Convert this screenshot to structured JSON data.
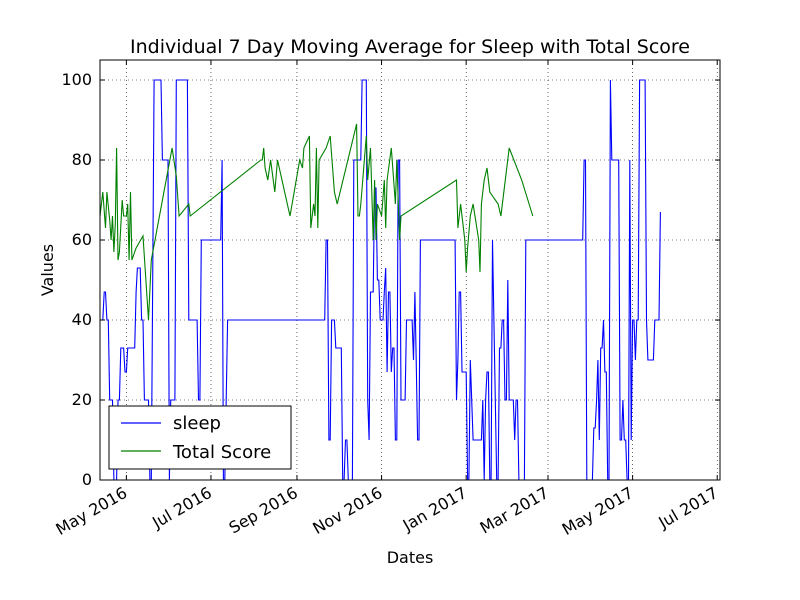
{
  "chart_data": {
    "type": "line",
    "title": "Individual 7 Day Moving Average for Sleep with Total Score",
    "xlabel": "Dates",
    "ylabel": "Values",
    "xlim": [
      "2016-04-12",
      "2017-07-03"
    ],
    "ylim": [
      0,
      105
    ],
    "yticks": [
      0,
      20,
      40,
      60,
      80,
      100
    ],
    "xticks": [
      {
        "date": "2016-05-01",
        "label": "May 2016"
      },
      {
        "date": "2016-07-01",
        "label": "Jul 2016"
      },
      {
        "date": "2016-09-01",
        "label": "Sep 2016"
      },
      {
        "date": "2016-11-01",
        "label": "Nov 2016"
      },
      {
        "date": "2017-01-01",
        "label": "Jan 2017"
      },
      {
        "date": "2017-03-01",
        "label": "Mar 2017"
      },
      {
        "date": "2017-05-01",
        "label": "May 2017"
      },
      {
        "date": "2017-07-01",
        "label": "Jul 2017"
      }
    ],
    "grid": true,
    "legend_position": "lower-left",
    "series": [
      {
        "name": "sleep",
        "color": "#0000ff",
        "points": [
          [
            "2016-04-12",
            40
          ],
          [
            "2016-04-14",
            40
          ],
          [
            "2016-04-15",
            47
          ],
          [
            "2016-04-16",
            47
          ],
          [
            "2016-04-17",
            40
          ],
          [
            "2016-04-18",
            40
          ],
          [
            "2016-04-19",
            20
          ],
          [
            "2016-04-21",
            20
          ],
          [
            "2016-04-22",
            0
          ],
          [
            "2016-04-23",
            0
          ],
          [
            "2016-04-24",
            0
          ],
          [
            "2016-04-25",
            20
          ],
          [
            "2016-04-26",
            20
          ],
          [
            "2016-04-27",
            33
          ],
          [
            "2016-04-29",
            33
          ],
          [
            "2016-04-30",
            27
          ],
          [
            "2016-05-01",
            27
          ],
          [
            "2016-05-02",
            33
          ],
          [
            "2016-05-07",
            33
          ],
          [
            "2016-05-08",
            47
          ],
          [
            "2016-05-09",
            53
          ],
          [
            "2016-05-11",
            53
          ],
          [
            "2016-05-12",
            40
          ],
          [
            "2016-05-13",
            40
          ],
          [
            "2016-05-14",
            20
          ],
          [
            "2016-05-17",
            20
          ],
          [
            "2016-05-18",
            0
          ],
          [
            "2016-05-19",
            0
          ],
          [
            "2016-05-21",
            100
          ],
          [
            "2016-05-26",
            100
          ],
          [
            "2016-05-27",
            80
          ],
          [
            "2016-05-31",
            80
          ],
          [
            "2016-06-01",
            0
          ],
          [
            "2016-06-02",
            20
          ],
          [
            "2016-06-05",
            20
          ],
          [
            "2016-06-06",
            100
          ],
          [
            "2016-06-14",
            100
          ],
          [
            "2016-06-15",
            40
          ],
          [
            "2016-06-21",
            40
          ],
          [
            "2016-06-22",
            20
          ],
          [
            "2016-06-23",
            20
          ],
          [
            "2016-06-24",
            60
          ],
          [
            "2016-07-08",
            60
          ],
          [
            "2016-07-09",
            80
          ],
          [
            "2016-07-10",
            0
          ],
          [
            "2016-07-11",
            0
          ],
          [
            "2016-07-13",
            40
          ],
          [
            "2016-09-15",
            40
          ],
          [
            "2016-09-21",
            40
          ],
          [
            "2016-09-22",
            60
          ],
          [
            "2016-09-23",
            60
          ],
          [
            "2016-09-24",
            10
          ],
          [
            "2016-09-25",
            10
          ],
          [
            "2016-09-26",
            40
          ],
          [
            "2016-09-28",
            40
          ],
          [
            "2016-09-29",
            33
          ],
          [
            "2016-10-03",
            33
          ],
          [
            "2016-10-04",
            0
          ],
          [
            "2016-10-05",
            0
          ],
          [
            "2016-10-06",
            10
          ],
          [
            "2016-10-07",
            10
          ],
          [
            "2016-10-08",
            0
          ],
          [
            "2016-10-11",
            0
          ],
          [
            "2016-10-12",
            80
          ],
          [
            "2016-10-17",
            80
          ],
          [
            "2016-10-18",
            100
          ],
          [
            "2016-10-21",
            100
          ],
          [
            "2016-10-22",
            20
          ],
          [
            "2016-10-23",
            10
          ],
          [
            "2016-10-24",
            47
          ],
          [
            "2016-10-26",
            47
          ],
          [
            "2016-10-27",
            73
          ],
          [
            "2016-10-28",
            73
          ],
          [
            "2016-10-29",
            50
          ],
          [
            "2016-10-30",
            50
          ],
          [
            "2016-10-31",
            40
          ],
          [
            "2016-11-02",
            40
          ],
          [
            "2016-11-03",
            47
          ],
          [
            "2016-11-04",
            53
          ],
          [
            "2016-11-05",
            27
          ],
          [
            "2016-11-06",
            47
          ],
          [
            "2016-11-07",
            47
          ],
          [
            "2016-11-08",
            27
          ],
          [
            "2016-11-09",
            33
          ],
          [
            "2016-11-10",
            33
          ],
          [
            "2016-11-11",
            10
          ],
          [
            "2016-11-12",
            10
          ],
          [
            "2016-11-13",
            80
          ],
          [
            "2016-11-14",
            80
          ],
          [
            "2016-11-15",
            20
          ],
          [
            "2016-11-18",
            20
          ],
          [
            "2016-11-19",
            40
          ],
          [
            "2016-11-23",
            40
          ],
          [
            "2016-11-24",
            30
          ],
          [
            "2016-11-25",
            47
          ],
          [
            "2016-11-26",
            30
          ],
          [
            "2016-11-27",
            10
          ],
          [
            "2016-11-28",
            10
          ],
          [
            "2016-11-29",
            60
          ],
          [
            "2016-12-24",
            60
          ],
          [
            "2016-12-25",
            20
          ],
          [
            "2016-12-26",
            30
          ],
          [
            "2016-12-27",
            47
          ],
          [
            "2016-12-28",
            47
          ],
          [
            "2016-12-29",
            27
          ],
          [
            "2017-01-01",
            27
          ],
          [
            "2017-01-02",
            0
          ],
          [
            "2017-01-03",
            0
          ],
          [
            "2017-01-04",
            30
          ],
          [
            "2017-01-05",
            20
          ],
          [
            "2017-01-06",
            10
          ],
          [
            "2017-01-12",
            10
          ],
          [
            "2017-01-13",
            20
          ],
          [
            "2017-01-14",
            0
          ],
          [
            "2017-01-15",
            20
          ],
          [
            "2017-01-16",
            27
          ],
          [
            "2017-01-17",
            27
          ],
          [
            "2017-01-18",
            0
          ],
          [
            "2017-01-19",
            0
          ],
          [
            "2017-01-20",
            60
          ],
          [
            "2017-01-21",
            40
          ],
          [
            "2017-01-22",
            20
          ],
          [
            "2017-01-23",
            0
          ],
          [
            "2017-01-24",
            0
          ],
          [
            "2017-01-25",
            33
          ],
          [
            "2017-01-26",
            33
          ],
          [
            "2017-01-27",
            40
          ],
          [
            "2017-01-28",
            40
          ],
          [
            "2017-01-29",
            20
          ],
          [
            "2017-01-30",
            20
          ],
          [
            "2017-01-31",
            50
          ],
          [
            "2017-02-01",
            20
          ],
          [
            "2017-02-04",
            20
          ],
          [
            "2017-02-05",
            10
          ],
          [
            "2017-02-06",
            20
          ],
          [
            "2017-02-07",
            20
          ],
          [
            "2017-02-08",
            0
          ],
          [
            "2017-02-12",
            0
          ],
          [
            "2017-02-13",
            60
          ],
          [
            "2017-03-26",
            60
          ],
          [
            "2017-03-27",
            80
          ],
          [
            "2017-03-28",
            80
          ],
          [
            "2017-03-29",
            0
          ],
          [
            "2017-04-02",
            0
          ],
          [
            "2017-04-03",
            13
          ],
          [
            "2017-04-04",
            13
          ],
          [
            "2017-04-05",
            20
          ],
          [
            "2017-04-06",
            30
          ],
          [
            "2017-04-07",
            10
          ],
          [
            "2017-04-08",
            33
          ],
          [
            "2017-04-09",
            33
          ],
          [
            "2017-04-10",
            40
          ],
          [
            "2017-04-11",
            27
          ],
          [
            "2017-04-12",
            27
          ],
          [
            "2017-04-13",
            0
          ],
          [
            "2017-04-14",
            0
          ],
          [
            "2017-04-15",
            100
          ],
          [
            "2017-04-16",
            80
          ],
          [
            "2017-04-21",
            80
          ],
          [
            "2017-04-22",
            10
          ],
          [
            "2017-04-23",
            10
          ],
          [
            "2017-04-24",
            20
          ],
          [
            "2017-04-25",
            10
          ],
          [
            "2017-04-26",
            10
          ],
          [
            "2017-04-27",
            0
          ],
          [
            "2017-04-28",
            0
          ],
          [
            "2017-04-29",
            80
          ],
          [
            "2017-04-30",
            10
          ],
          [
            "2017-05-01",
            40
          ],
          [
            "2017-05-02",
            40
          ],
          [
            "2017-05-03",
            30
          ],
          [
            "2017-05-04",
            40
          ],
          [
            "2017-05-05",
            40
          ],
          [
            "2017-05-06",
            100
          ],
          [
            "2017-05-10",
            100
          ],
          [
            "2017-05-11",
            40
          ],
          [
            "2017-05-12",
            30
          ],
          [
            "2017-05-16",
            30
          ],
          [
            "2017-05-17",
            40
          ],
          [
            "2017-05-20",
            40
          ],
          [
            "2017-05-21",
            67
          ]
        ]
      },
      {
        "name": "Total Score",
        "color": "#008000",
        "points": [
          [
            "2016-04-12",
            66
          ],
          [
            "2016-04-14",
            72
          ],
          [
            "2016-04-16",
            63
          ],
          [
            "2016-04-17",
            72
          ],
          [
            "2016-04-19",
            65
          ],
          [
            "2016-04-20",
            60
          ],
          [
            "2016-04-21",
            66
          ],
          [
            "2016-04-22",
            57
          ],
          [
            "2016-04-23",
            64
          ],
          [
            "2016-04-24",
            83
          ],
          [
            "2016-04-25",
            55
          ],
          [
            "2016-04-26",
            57
          ],
          [
            "2016-04-28",
            70
          ],
          [
            "2016-04-29",
            66
          ],
          [
            "2016-05-01",
            66
          ],
          [
            "2016-05-02",
            69
          ],
          [
            "2016-05-03",
            55
          ],
          [
            "2016-05-04",
            72
          ],
          [
            "2016-05-05",
            55
          ],
          [
            "2016-05-08",
            58
          ],
          [
            "2016-05-13",
            61
          ],
          [
            "2016-05-17",
            40
          ],
          [
            "2016-05-19",
            55
          ],
          [
            "2016-06-03",
            83
          ],
          [
            "2016-06-06",
            76
          ],
          [
            "2016-06-08",
            66
          ],
          [
            "2016-06-15",
            69
          ],
          [
            "2016-06-16",
            66
          ],
          [
            "2016-08-06",
            80
          ],
          [
            "2016-08-07",
            80
          ],
          [
            "2016-08-08",
            83
          ],
          [
            "2016-08-09",
            78
          ],
          [
            "2016-08-11",
            75
          ],
          [
            "2016-08-13",
            80
          ],
          [
            "2016-08-16",
            72
          ],
          [
            "2016-08-18",
            80
          ],
          [
            "2016-08-27",
            66
          ],
          [
            "2016-09-03",
            80
          ],
          [
            "2016-09-05",
            78
          ],
          [
            "2016-09-06",
            83
          ],
          [
            "2016-09-10",
            86
          ],
          [
            "2016-09-11",
            63
          ],
          [
            "2016-09-13",
            69
          ],
          [
            "2016-09-14",
            66
          ],
          [
            "2016-09-15",
            83
          ],
          [
            "2016-09-16",
            63
          ],
          [
            "2016-09-17",
            80
          ],
          [
            "2016-09-22",
            83
          ],
          [
            "2016-09-25",
            86
          ],
          [
            "2016-09-28",
            72
          ],
          [
            "2016-09-30",
            69
          ],
          [
            "2016-10-14",
            89
          ],
          [
            "2016-10-15",
            66
          ],
          [
            "2016-10-16",
            66
          ],
          [
            "2016-10-17",
            69
          ],
          [
            "2016-10-21",
            86
          ],
          [
            "2016-10-22",
            75
          ],
          [
            "2016-10-24",
            83
          ],
          [
            "2016-10-26",
            60
          ],
          [
            "2016-10-27",
            75
          ],
          [
            "2016-10-28",
            60
          ],
          [
            "2016-10-29",
            69
          ],
          [
            "2016-11-01",
            66
          ],
          [
            "2016-11-03",
            75
          ],
          [
            "2016-11-04",
            63
          ],
          [
            "2016-11-05",
            75
          ],
          [
            "2016-11-08",
            83
          ],
          [
            "2016-11-11",
            69
          ],
          [
            "2016-11-12",
            80
          ],
          [
            "2016-11-14",
            60
          ],
          [
            "2016-11-15",
            66
          ],
          [
            "2016-12-25",
            75
          ],
          [
            "2016-12-26",
            63
          ],
          [
            "2016-12-28",
            69
          ],
          [
            "2016-12-29",
            66
          ],
          [
            "2016-12-31",
            60
          ],
          [
            "2017-01-01",
            52
          ],
          [
            "2017-01-02",
            58
          ],
          [
            "2017-01-04",
            66
          ],
          [
            "2017-01-06",
            69
          ],
          [
            "2017-01-10",
            60
          ],
          [
            "2017-01-11",
            52
          ],
          [
            "2017-01-12",
            69
          ],
          [
            "2017-01-14",
            75
          ],
          [
            "2017-01-16",
            78
          ],
          [
            "2017-01-18",
            72
          ],
          [
            "2017-01-20",
            71
          ],
          [
            "2017-01-22",
            70
          ],
          [
            "2017-01-24",
            69
          ],
          [
            "2017-01-26",
            66
          ],
          [
            "2017-02-01",
            83
          ],
          [
            "2017-02-10",
            75
          ],
          [
            "2017-02-18",
            66
          ]
        ]
      }
    ]
  }
}
